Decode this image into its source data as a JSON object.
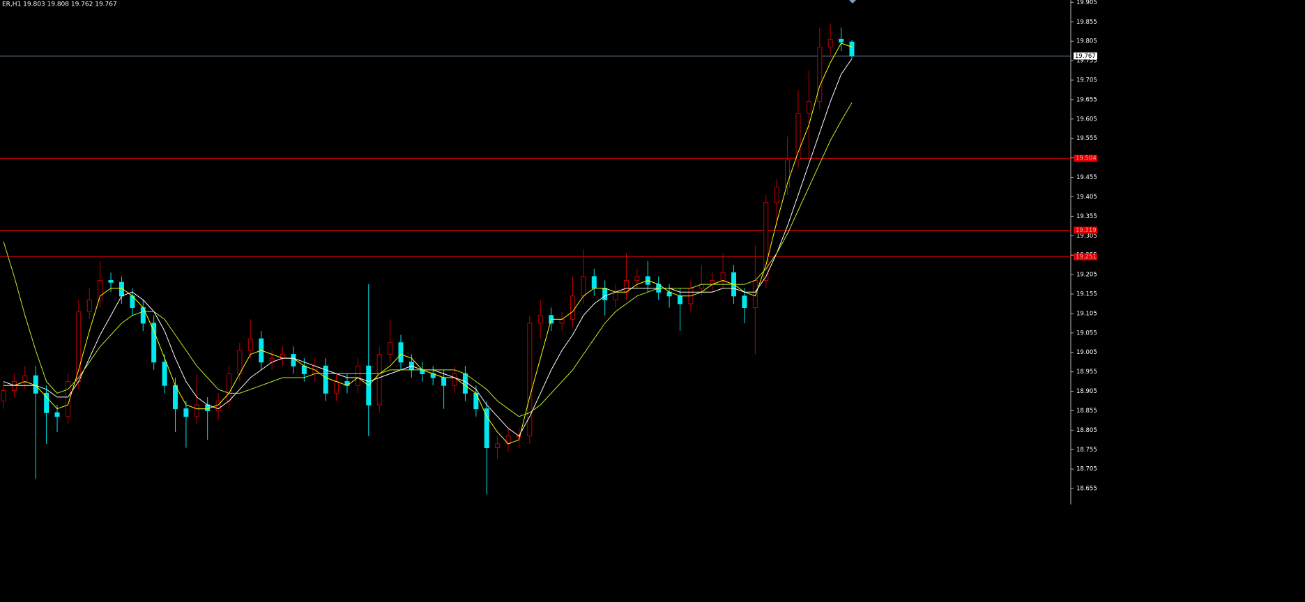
{
  "chart_data": {
    "type": "candlestick",
    "title": "ER,H1  19.803 19.808 19.762 19.767",
    "ylim": [
      18.614,
      19.911
    ],
    "yticks": [
      18.655,
      18.705,
      18.755,
      18.805,
      18.855,
      18.905,
      18.955,
      19.005,
      19.055,
      19.105,
      19.155,
      19.205,
      19.255,
      19.305,
      19.355,
      19.405,
      19.455,
      19.505,
      19.555,
      19.605,
      19.655,
      19.705,
      19.755,
      19.805,
      19.855,
      19.905
    ],
    "up_color": "#c00000",
    "down_color": "#00e8f0",
    "open": [
      18.88,
      18.907,
      18.93,
      18.945,
      18.9,
      18.85,
      18.84,
      18.93,
      19.11,
      19.14,
      19.19,
      19.185,
      19.15,
      19.12,
      19.08,
      18.98,
      18.92,
      18.86,
      18.84,
      18.87,
      18.855,
      18.88,
      18.95,
      19.01,
      19.04,
      18.98,
      18.99,
      19.0,
      18.97,
      18.95,
      18.97,
      18.9,
      18.93,
      18.92,
      18.97,
      18.87,
      19.0,
      19.03,
      18.98,
      18.96,
      18.95,
      18.94,
      18.92,
      18.95,
      18.9,
      18.86,
      18.76,
      18.77,
      18.79,
      18.79,
      19.08,
      19.1,
      19.08,
      19.09,
      19.15,
      19.2,
      19.17,
      19.14,
      19.16,
      19.19,
      19.2,
      19.18,
      19.16,
      19.15,
      19.13,
      19.17,
      19.18,
      19.19,
      19.21,
      19.15,
      19.12,
      19.19,
      19.39,
      19.43,
      19.5,
      19.62,
      19.65,
      19.79,
      19.81,
      19.803
    ],
    "high": [
      18.93,
      18.95,
      18.97,
      18.97,
      18.92,
      18.87,
      18.95,
      19.14,
      19.17,
      19.24,
      19.21,
      19.2,
      19.17,
      19.14,
      19.1,
      19.0,
      18.94,
      18.88,
      18.95,
      18.89,
      18.9,
      18.97,
      19.03,
      19.09,
      19.06,
      19.01,
      19.02,
      19.02,
      18.99,
      18.99,
      18.99,
      18.95,
      18.95,
      18.99,
      19.18,
      19.02,
      19.09,
      19.05,
      19.0,
      18.98,
      18.97,
      18.96,
      18.97,
      18.97,
      18.92,
      18.88,
      18.79,
      18.81,
      18.81,
      19.1,
      19.14,
      19.12,
      19.11,
      19.2,
      19.27,
      19.22,
      19.19,
      19.18,
      19.26,
      19.22,
      19.24,
      19.2,
      19.18,
      19.17,
      19.19,
      19.23,
      19.21,
      19.26,
      19.23,
      19.17,
      19.28,
      19.41,
      19.45,
      19.56,
      19.68,
      19.73,
      19.84,
      19.85,
      19.84,
      19.808
    ],
    "low": [
      18.86,
      18.89,
      18.91,
      18.68,
      18.77,
      18.8,
      18.82,
      18.91,
      19.09,
      19.12,
      19.16,
      19.13,
      19.1,
      19.06,
      18.96,
      18.9,
      18.8,
      18.76,
      18.82,
      18.78,
      18.83,
      18.86,
      18.93,
      18.99,
      18.96,
      18.96,
      18.97,
      18.95,
      18.93,
      18.93,
      18.88,
      18.88,
      18.9,
      18.9,
      18.79,
      18.85,
      18.98,
      18.96,
      18.94,
      18.93,
      18.92,
      18.86,
      18.9,
      18.88,
      18.84,
      18.64,
      18.73,
      18.75,
      18.76,
      18.77,
      19.04,
      19.06,
      19.06,
      19.07,
      19.13,
      19.15,
      19.1,
      19.12,
      19.14,
      19.17,
      19.16,
      19.14,
      19.12,
      19.06,
      19.11,
      19.15,
      19.16,
      19.17,
      19.13,
      19.08,
      19.0,
      19.17,
      19.33,
      19.41,
      19.48,
      19.5,
      19.63,
      19.77,
      19.78,
      19.762
    ],
    "close": [
      18.907,
      18.93,
      18.945,
      18.9,
      18.85,
      18.84,
      18.93,
      19.11,
      19.14,
      19.19,
      19.185,
      19.15,
      19.12,
      19.08,
      18.98,
      18.92,
      18.86,
      18.84,
      18.87,
      18.855,
      18.88,
      18.95,
      19.01,
      19.04,
      18.98,
      18.99,
      19.0,
      18.97,
      18.95,
      18.97,
      18.9,
      18.93,
      18.92,
      18.97,
      18.87,
      19.0,
      19.03,
      18.98,
      18.96,
      18.95,
      18.94,
      18.92,
      18.95,
      18.9,
      18.86,
      18.76,
      18.77,
      18.79,
      18.79,
      19.08,
      19.1,
      19.08,
      19.09,
      19.15,
      19.2,
      19.17,
      19.14,
      19.16,
      19.19,
      19.2,
      19.18,
      19.16,
      19.15,
      19.13,
      19.17,
      19.18,
      19.19,
      19.21,
      19.15,
      19.12,
      19.19,
      19.39,
      19.43,
      19.5,
      19.62,
      19.65,
      19.79,
      19.81,
      19.803,
      19.767
    ],
    "series": [
      {
        "color": "#ffff00",
        "values": [
          18.92,
          18.92,
          18.93,
          18.92,
          18.89,
          18.86,
          18.87,
          18.96,
          19.06,
          19.15,
          19.17,
          19.17,
          19.15,
          19.12,
          19.06,
          18.99,
          18.92,
          18.87,
          18.86,
          18.86,
          18.87,
          18.9,
          18.95,
          19.0,
          19.01,
          19.0,
          18.99,
          18.99,
          18.97,
          18.96,
          18.94,
          18.93,
          18.92,
          18.94,
          18.92,
          18.95,
          18.97,
          19.0,
          18.99,
          18.96,
          18.95,
          18.94,
          18.94,
          18.92,
          18.9,
          18.84,
          18.8,
          18.77,
          18.78,
          18.89,
          18.99,
          19.09,
          19.09,
          19.11,
          19.15,
          19.17,
          19.17,
          19.16,
          19.16,
          19.18,
          19.19,
          19.18,
          19.16,
          19.15,
          19.15,
          19.16,
          19.18,
          19.19,
          19.18,
          19.16,
          19.15,
          19.23,
          19.34,
          19.44,
          19.52,
          19.59,
          19.69,
          19.75,
          19.8,
          19.79
        ]
      },
      {
        "color": "#ffffff",
        "values": [
          18.93,
          18.92,
          18.92,
          18.92,
          18.91,
          18.89,
          18.89,
          18.93,
          18.99,
          19.05,
          19.1,
          19.15,
          19.16,
          19.14,
          19.11,
          19.06,
          18.99,
          18.93,
          18.89,
          18.87,
          18.86,
          18.88,
          18.91,
          18.94,
          18.96,
          18.98,
          18.99,
          18.99,
          18.98,
          18.97,
          18.96,
          18.95,
          18.94,
          18.94,
          18.93,
          18.94,
          18.95,
          18.96,
          18.97,
          18.96,
          18.96,
          18.95,
          18.94,
          18.93,
          18.91,
          18.87,
          18.84,
          18.81,
          18.79,
          18.84,
          18.9,
          18.96,
          19.01,
          19.05,
          19.1,
          19.13,
          19.15,
          19.16,
          19.17,
          19.17,
          19.17,
          19.17,
          19.17,
          19.16,
          19.16,
          19.16,
          19.16,
          19.17,
          19.17,
          19.16,
          19.16,
          19.2,
          19.26,
          19.33,
          19.41,
          19.49,
          19.57,
          19.65,
          19.72,
          19.76
        ]
      },
      {
        "color": "#b8f02a",
        "values": [
          19.29,
          19.2,
          19.1,
          19.01,
          18.93,
          18.9,
          18.91,
          18.94,
          18.98,
          19.02,
          19.05,
          19.08,
          19.1,
          19.11,
          19.11,
          19.09,
          19.05,
          19.01,
          18.97,
          18.94,
          18.91,
          18.9,
          18.9,
          18.91,
          18.92,
          18.93,
          18.94,
          18.94,
          18.94,
          18.95,
          18.95,
          18.95,
          18.95,
          18.95,
          18.95,
          18.95,
          18.96,
          18.96,
          18.96,
          18.96,
          18.96,
          18.96,
          18.96,
          18.95,
          18.93,
          18.91,
          18.88,
          18.86,
          18.84,
          18.85,
          18.87,
          18.9,
          18.93,
          18.96,
          19.0,
          19.04,
          19.08,
          19.11,
          19.13,
          19.15,
          19.16,
          19.17,
          19.17,
          19.17,
          19.17,
          19.18,
          19.18,
          19.18,
          19.18,
          19.18,
          19.19,
          19.22,
          19.26,
          19.31,
          19.37,
          19.43,
          19.49,
          19.55,
          19.6,
          19.647
        ]
      }
    ],
    "levels": [
      {
        "value": 19.504,
        "color": "#e00000"
      },
      {
        "value": 19.319,
        "color": "#e00000"
      },
      {
        "value": 19.251,
        "color": "#e00000"
      }
    ],
    "last_price": {
      "value": 19.767,
      "color": "#6f8fa8"
    }
  }
}
